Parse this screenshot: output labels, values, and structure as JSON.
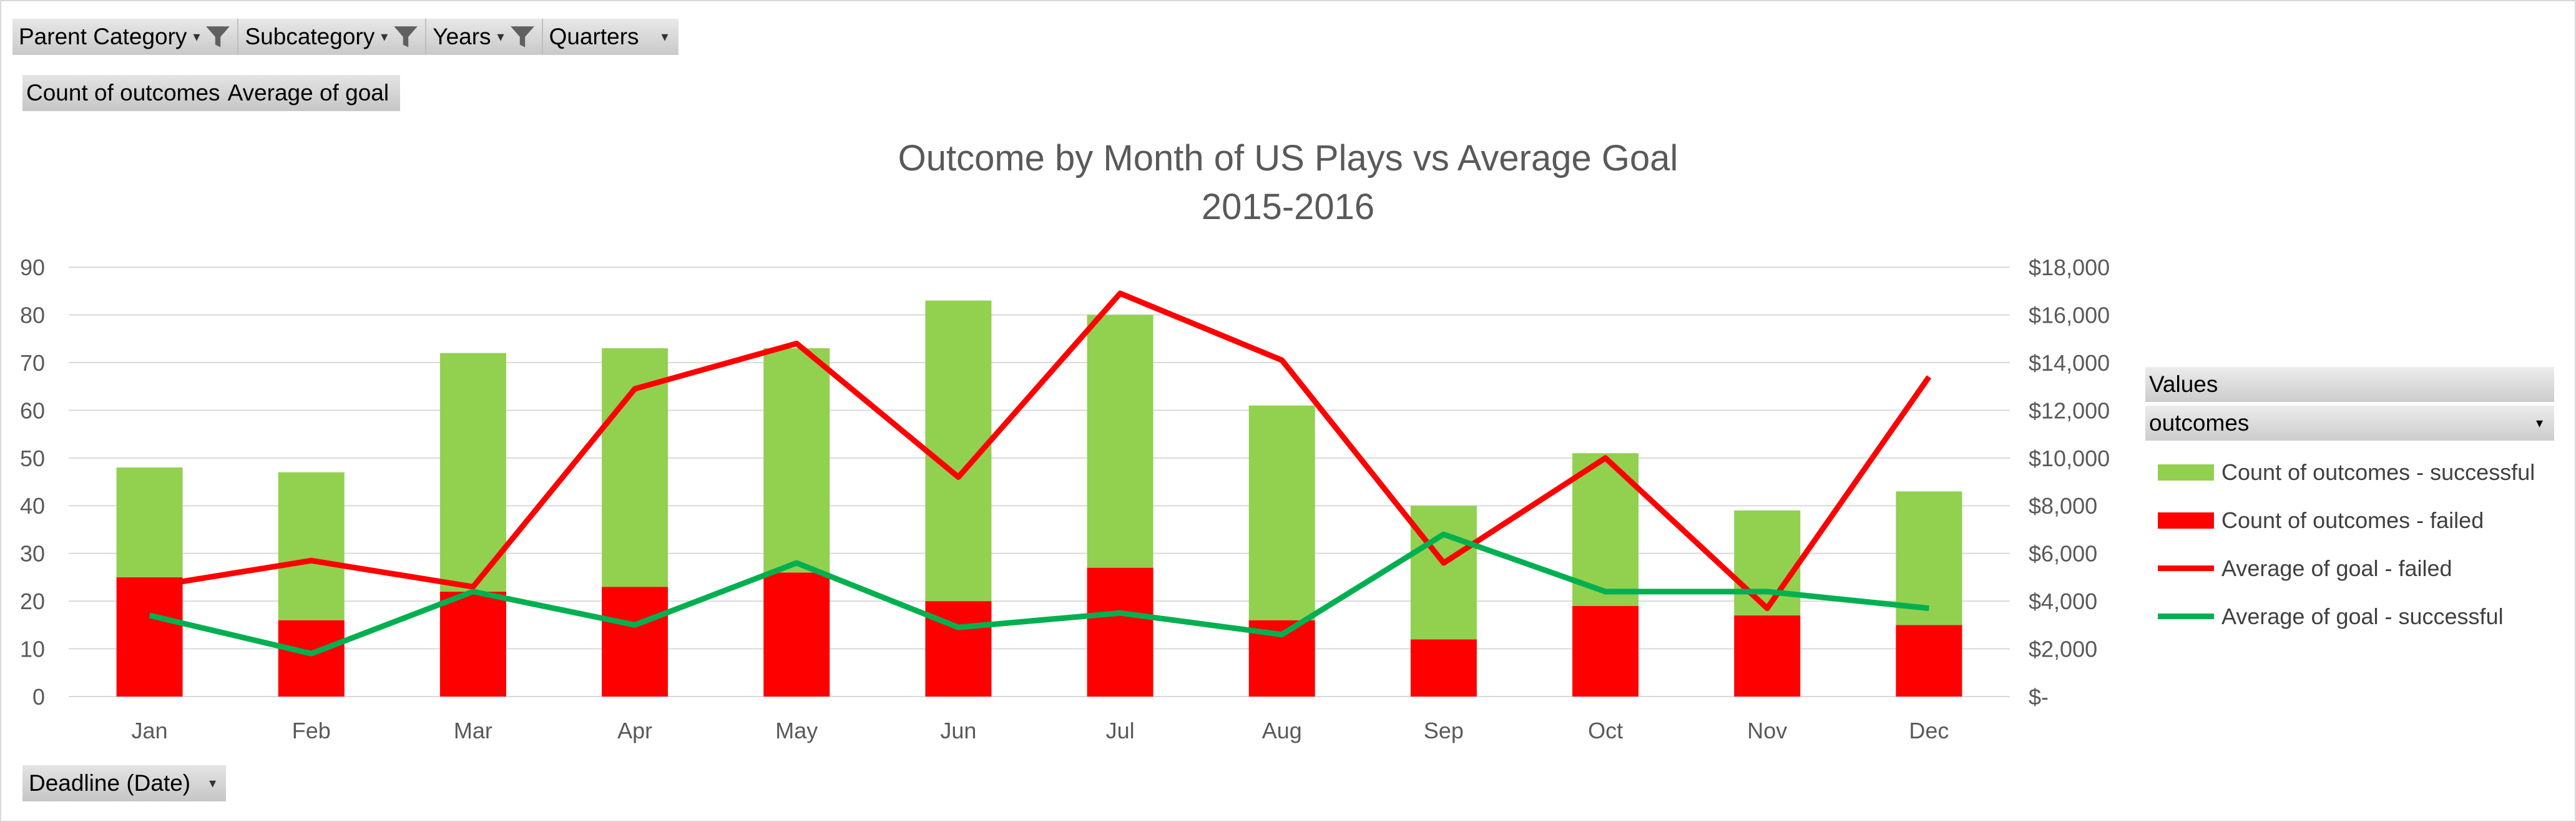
{
  "filters": [
    {
      "label": "Parent Category",
      "filtered": true
    },
    {
      "label": "Subcategory",
      "filtered": true
    },
    {
      "label": "Years",
      "filtered": true
    },
    {
      "label": "Quarters",
      "filtered": false
    }
  ],
  "values_fields": [
    "Count of outcomes",
    "Average of goal"
  ],
  "axis_field": "Deadline (Date)",
  "legend_panel": {
    "header": "Values",
    "field": "outcomes"
  },
  "colors": {
    "successful_bar": "#92d050",
    "failed_bar": "#ff0000",
    "failed_line": "#ff0000",
    "successful_line": "#00b050"
  },
  "chart_data": {
    "type": "bar",
    "subtype": "stacked-bar with line overlay (secondary axis)",
    "title": "Outcome by Month of US Plays vs Average Goal",
    "subtitle": "2015-2016",
    "categories": [
      "Jan",
      "Feb",
      "Mar",
      "Apr",
      "May",
      "Jun",
      "Jul",
      "Aug",
      "Sep",
      "Oct",
      "Nov",
      "Dec"
    ],
    "ylim": [
      0,
      90
    ],
    "y_ticks": [
      0,
      10,
      20,
      30,
      40,
      50,
      60,
      70,
      80,
      90
    ],
    "y2lim": [
      0,
      18000
    ],
    "y2_ticks": [
      0,
      2000,
      4000,
      6000,
      8000,
      10000,
      12000,
      14000,
      16000,
      18000
    ],
    "y2_tick_labels": [
      "$-",
      "$2,000",
      "$4,000",
      "$6,000",
      "$8,000",
      "$10,000",
      "$12,000",
      "$14,000",
      "$16,000",
      "$18,000"
    ],
    "grid": true,
    "legend_position": "right",
    "series": [
      {
        "name": "Count of outcomes - failed",
        "kind": "bar",
        "axis": "primary",
        "values": [
          25,
          16,
          22,
          23,
          26,
          20,
          27,
          16,
          12,
          19,
          17,
          15
        ]
      },
      {
        "name": "Count of outcomes - successful",
        "kind": "bar",
        "axis": "primary",
        "values": [
          23,
          31,
          50,
          50,
          47,
          63,
          53,
          45,
          28,
          32,
          22,
          28
        ]
      },
      {
        "name": "Average of goal - failed",
        "kind": "line",
        "axis": "secondary",
        "values": [
          4600,
          5700,
          4600,
          12900,
          14800,
          9200,
          16900,
          14100,
          5600,
          10000,
          3700,
          13400
        ]
      },
      {
        "name": "Average of goal - successful",
        "kind": "line",
        "axis": "secondary",
        "values": [
          3400,
          1800,
          4400,
          3000,
          5600,
          2900,
          3500,
          2600,
          6800,
          4400,
          4400,
          3700
        ]
      }
    ]
  }
}
